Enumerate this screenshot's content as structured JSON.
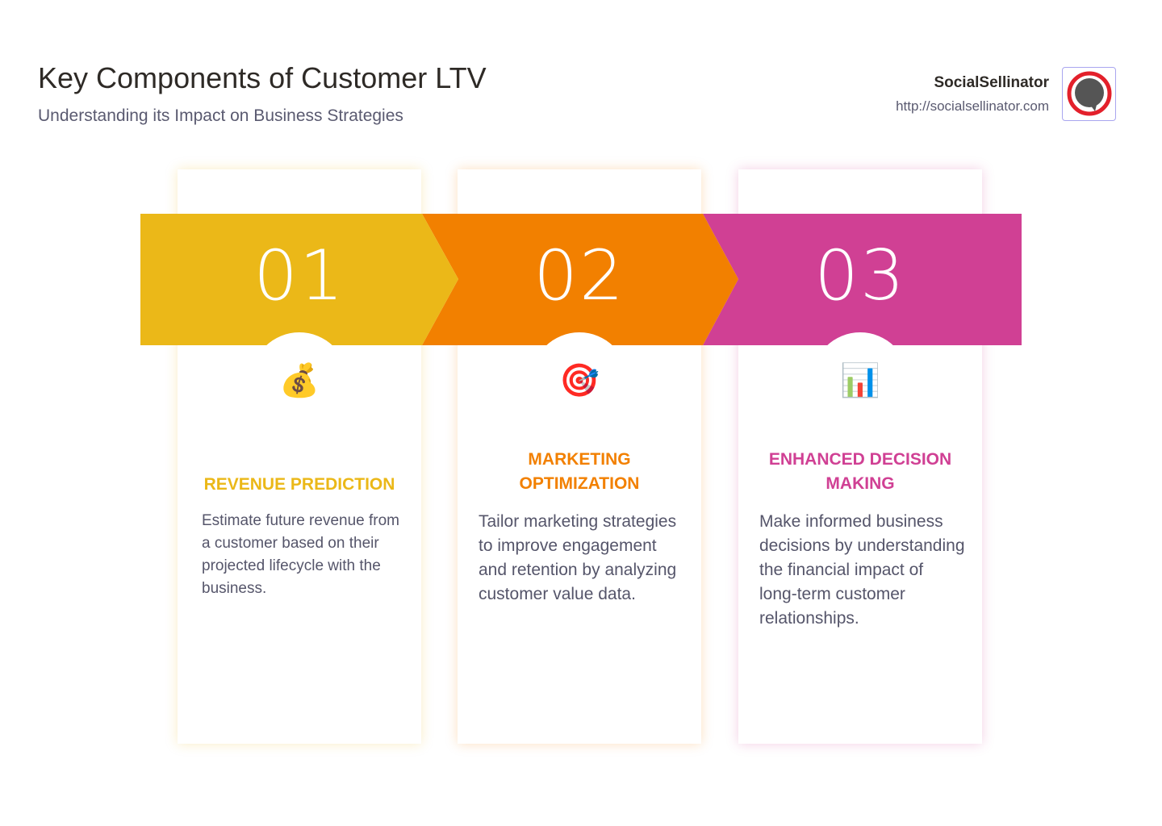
{
  "header": {
    "title": "Key Components of Customer LTV",
    "subtitle": "Understanding its Impact on Business Strategies"
  },
  "brand": {
    "name": "SocialSellinator",
    "url": "http://socialsellinator.com"
  },
  "steps": [
    {
      "number": "01",
      "icon": "💰",
      "icon_name": "money-bag-icon",
      "heading": "REVENUE PREDICTION",
      "text": "Estimate future revenue from a customer based on their projected lifecycle with the business.",
      "color": "#ebb818"
    },
    {
      "number": "02",
      "icon": "🎯",
      "icon_name": "target-icon",
      "heading": "MARKETING OPTIMIZATION",
      "text": "Tailor marketing strategies to improve engagement and retention by analyzing customer value data.",
      "color": "#f28000"
    },
    {
      "number": "03",
      "icon": "📊",
      "icon_name": "bar-chart-icon",
      "heading": "ENHANCED DECISION MAKING",
      "text": "Make informed business decisions by understanding the financial impact of long-term customer relationships.",
      "color": "#d04094"
    }
  ]
}
